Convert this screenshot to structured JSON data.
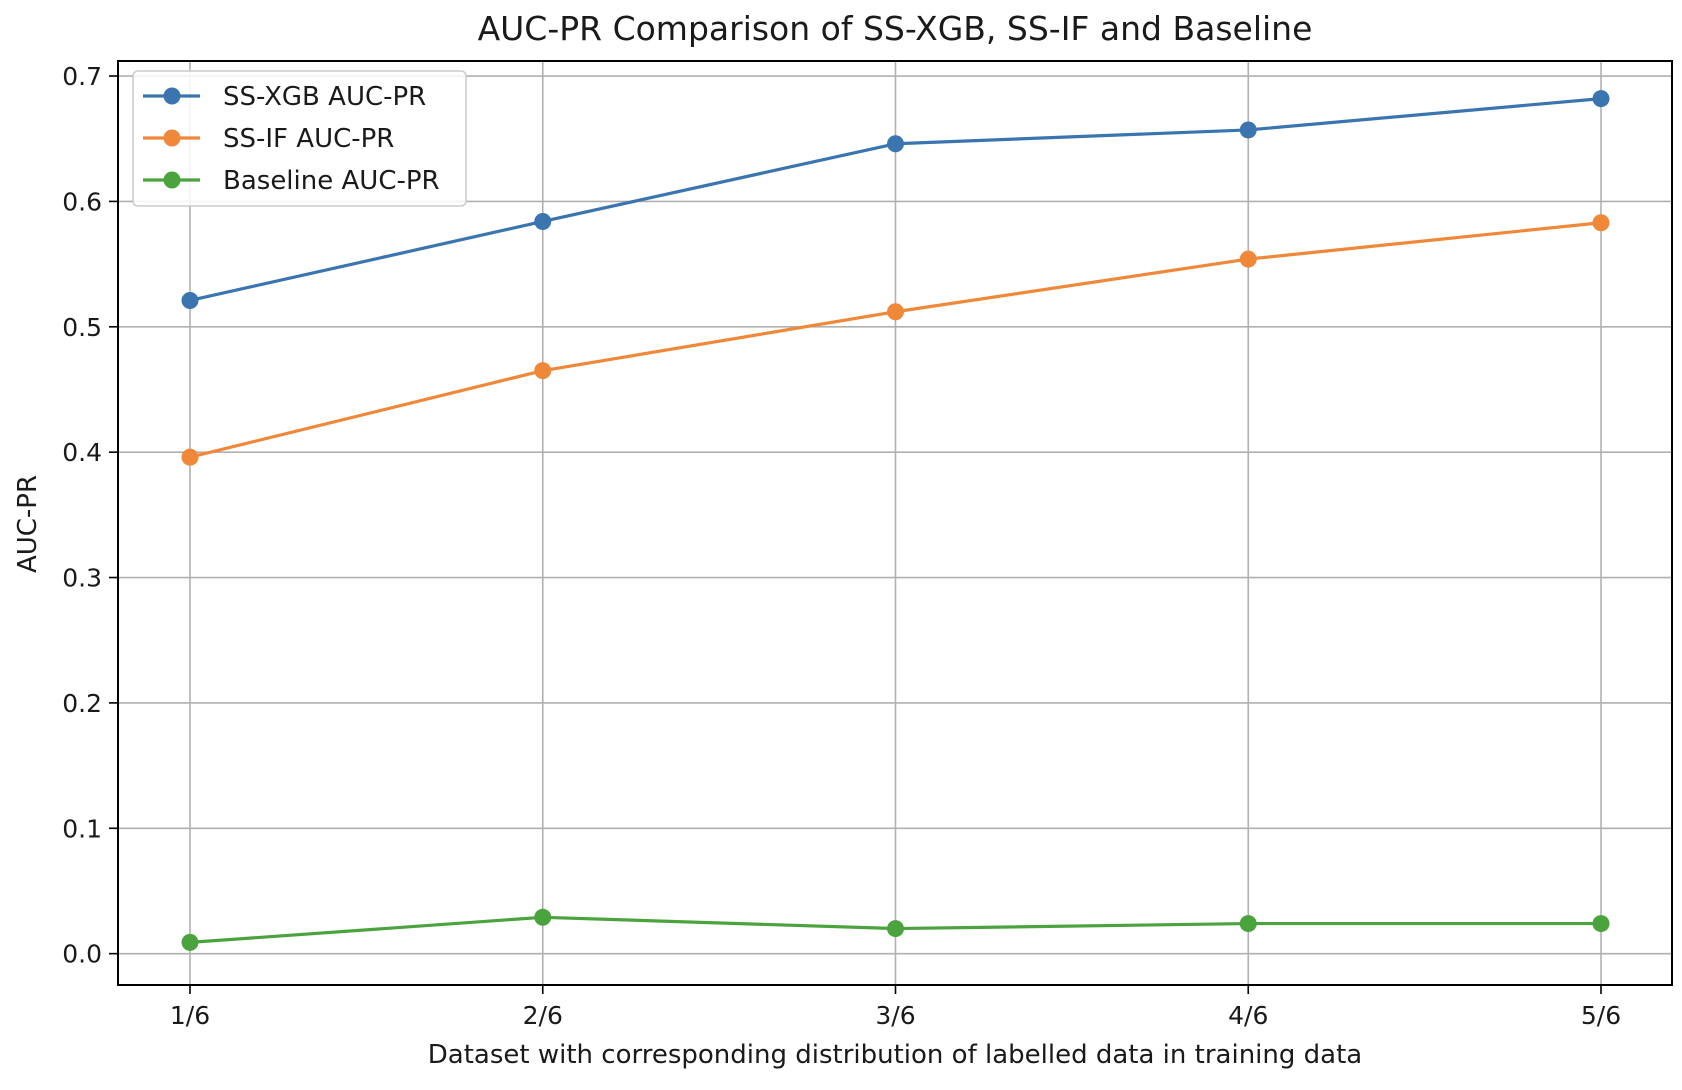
{
  "chart_data": {
    "type": "line",
    "title": "AUC-PR Comparison of SS-XGB, SS-IF and Baseline",
    "xlabel": "Dataset with corresponding distribution of labelled data in training data",
    "ylabel": "AUC-PR",
    "categories": [
      "1/6",
      "2/6",
      "3/6",
      "4/6",
      "5/6"
    ],
    "ylim": [
      -0.025,
      0.712
    ],
    "yticks": [
      0.0,
      0.1,
      0.2,
      0.3,
      0.4,
      0.5,
      0.6,
      0.7
    ],
    "ytick_labels": [
      "0.0",
      "0.1",
      "0.2",
      "0.3",
      "0.4",
      "0.5",
      "0.6",
      "0.7"
    ],
    "grid": true,
    "legend_position": "top-left",
    "series": [
      {
        "name": "SS-XGB AUC-PR",
        "color": "#3a75b0",
        "values": [
          0.521,
          0.584,
          0.646,
          0.657,
          0.682
        ]
      },
      {
        "name": "SS-IF AUC-PR",
        "color": "#f0883a",
        "values": [
          0.396,
          0.465,
          0.512,
          0.554,
          0.583
        ]
      },
      {
        "name": "Baseline AUC-PR",
        "color": "#4ba33e",
        "values": [
          0.009,
          0.029,
          0.02,
          0.024,
          0.024
        ]
      }
    ]
  }
}
